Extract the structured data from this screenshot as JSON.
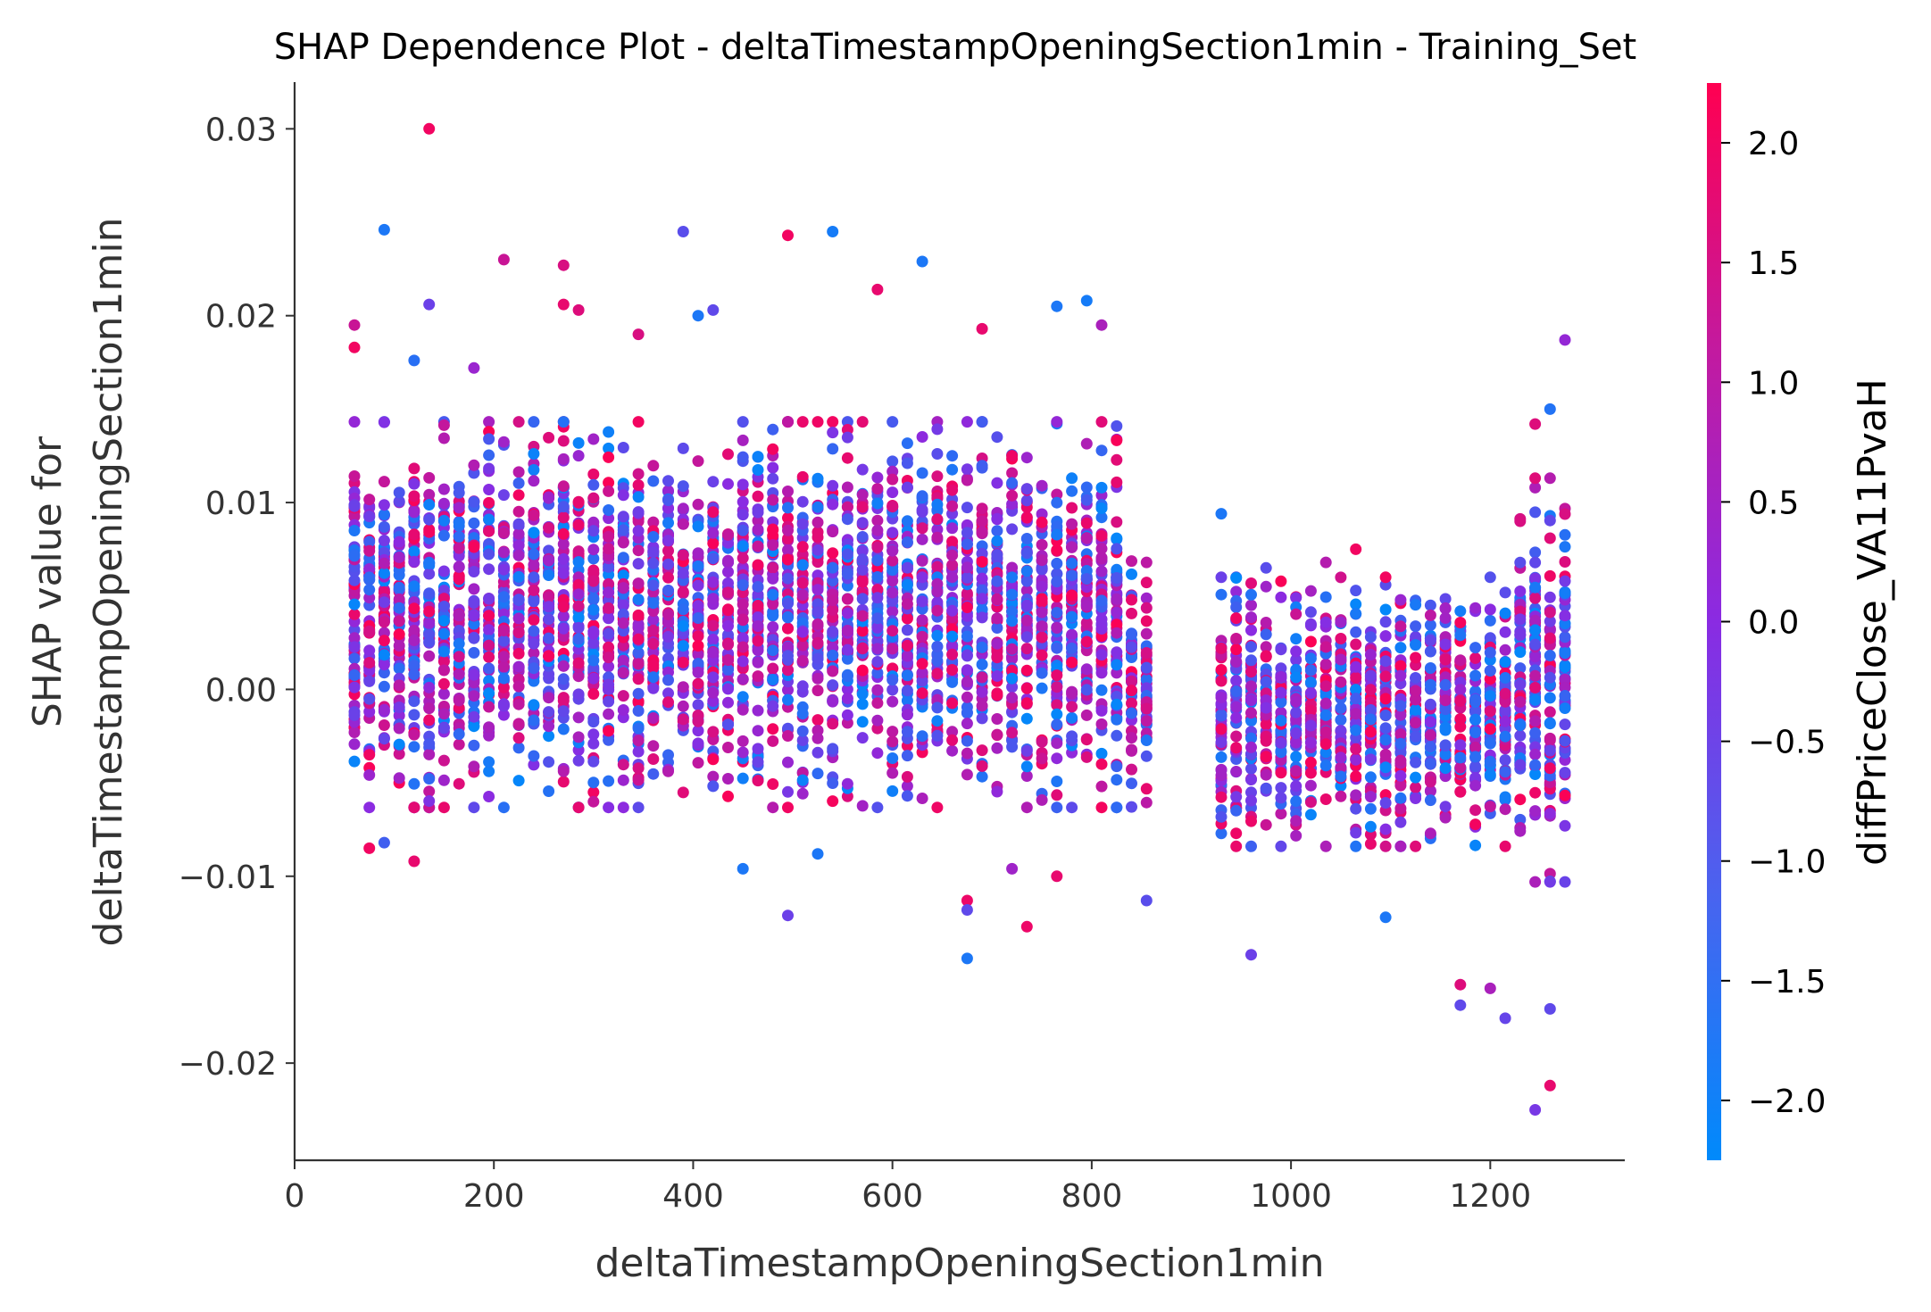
{
  "chart_data": {
    "type": "scatter",
    "title": "SHAP Dependence Plot - deltaTimestampOpeningSection1min - Training_Set",
    "xlabel": "deltaTimestampOpeningSection1min",
    "ylabel_line1": "SHAP value for",
    "ylabel_line2": "deltaTimestampOpeningSection1min",
    "xlim": [
      0,
      1335
    ],
    "ylim": [
      -0.0252,
      0.0325
    ],
    "x_ticks": [
      0,
      200,
      400,
      600,
      800,
      1000,
      1200
    ],
    "x_tick_labels": [
      "0",
      "200",
      "400",
      "600",
      "800",
      "1000",
      "1200"
    ],
    "y_ticks": [
      0.03,
      0.02,
      0.01,
      0.0,
      -0.01,
      -0.02
    ],
    "y_tick_labels": [
      "0.03",
      "0.02",
      "0.01",
      "0.00",
      "−0.01",
      "−0.02"
    ],
    "grid": false,
    "colorbar": {
      "label": "diffPriceClose_VA11PvaH",
      "range": [
        -2.25,
        2.25
      ],
      "ticks": [
        2.0,
        1.5,
        1.0,
        0.5,
        0.0,
        -0.5,
        -1.0,
        -1.5,
        -2.0
      ],
      "tick_labels": [
        "2.0",
        "1.5",
        "1.0",
        "0.5",
        "0.0",
        "−0.5",
        "−1.0",
        "−1.5",
        "−2.0"
      ],
      "color_low": "#008afb",
      "color_mid": "#8a2be2",
      "color_high": "#ff0051"
    },
    "points_note": "",
    "points": [
      {
        "x": 135,
        "y": 0.03,
        "c": 2.0
      },
      {
        "x": 90,
        "y": 0.0246,
        "c": -1.8
      },
      {
        "x": 390,
        "y": 0.0245,
        "c": -0.8
      },
      {
        "x": 495,
        "y": 0.0243,
        "c": 2.0
      },
      {
        "x": 540,
        "y": 0.0245,
        "c": -1.9
      },
      {
        "x": 630,
        "y": 0.0229,
        "c": -1.8
      },
      {
        "x": 210,
        "y": 0.023,
        "c": 1.2
      },
      {
        "x": 270,
        "y": 0.0227,
        "c": 1.5
      },
      {
        "x": 585,
        "y": 0.0214,
        "c": 1.8
      },
      {
        "x": 135,
        "y": 0.0206,
        "c": -0.5
      },
      {
        "x": 270,
        "y": 0.0206,
        "c": 1.8
      },
      {
        "x": 285,
        "y": 0.0203,
        "c": 1.6
      },
      {
        "x": 795,
        "y": 0.0208,
        "c": -1.9
      },
      {
        "x": 765,
        "y": 0.0205,
        "c": -1.8
      },
      {
        "x": 420,
        "y": 0.0203,
        "c": -0.7
      },
      {
        "x": 405,
        "y": 0.02,
        "c": -1.8
      },
      {
        "x": 60,
        "y": 0.0195,
        "c": 1.2
      },
      {
        "x": 810,
        "y": 0.0195,
        "c": 0.6
      },
      {
        "x": 690,
        "y": 0.0193,
        "c": 1.8
      },
      {
        "x": 345,
        "y": 0.019,
        "c": 1.5
      },
      {
        "x": 60,
        "y": 0.0183,
        "c": 2.0
      },
      {
        "x": 120,
        "y": 0.0176,
        "c": -1.6
      },
      {
        "x": 180,
        "y": 0.0172,
        "c": 0.3
      },
      {
        "x": 1275,
        "y": 0.0187,
        "c": 0.2
      },
      {
        "x": 1260,
        "y": 0.015,
        "c": -1.7
      },
      {
        "x": 1245,
        "y": 0.0142,
        "c": 1.6
      },
      {
        "x": 1230,
        "y": 0.009,
        "c": 1.5
      },
      {
        "x": 930,
        "y": 0.0094,
        "c": -1.8
      },
      {
        "x": 1065,
        "y": 0.0075,
        "c": 2.0
      },
      {
        "x": 975,
        "y": 0.0065,
        "c": -0.8
      },
      {
        "x": 1035,
        "y": 0.0068,
        "c": 0.8
      },
      {
        "x": 75,
        "y": -0.0085,
        "c": 2.0
      },
      {
        "x": 90,
        "y": -0.0082,
        "c": -1.2
      },
      {
        "x": 120,
        "y": -0.0092,
        "c": 1.8
      },
      {
        "x": 495,
        "y": -0.0121,
        "c": -0.5
      },
      {
        "x": 450,
        "y": -0.0096,
        "c": -1.8
      },
      {
        "x": 525,
        "y": -0.0088,
        "c": -1.8
      },
      {
        "x": 675,
        "y": -0.0113,
        "c": 1.9
      },
      {
        "x": 675,
        "y": -0.0118,
        "c": -0.7
      },
      {
        "x": 675,
        "y": -0.0144,
        "c": -1.8
      },
      {
        "x": 735,
        "y": -0.0127,
        "c": 1.9
      },
      {
        "x": 765,
        "y": -0.01,
        "c": 1.8
      },
      {
        "x": 720,
        "y": -0.0096,
        "c": 0.4
      },
      {
        "x": 855,
        "y": -0.0113,
        "c": -0.8
      },
      {
        "x": 960,
        "y": -0.0142,
        "c": -0.5
      },
      {
        "x": 1095,
        "y": -0.0122,
        "c": -1.8
      },
      {
        "x": 1170,
        "y": -0.0158,
        "c": 1.6
      },
      {
        "x": 1170,
        "y": -0.0169,
        "c": -0.7
      },
      {
        "x": 1200,
        "y": -0.016,
        "c": 0.6
      },
      {
        "x": 1215,
        "y": -0.0176,
        "c": -0.6
      },
      {
        "x": 1245,
        "y": -0.0225,
        "c": -0.3
      },
      {
        "x": 1260,
        "y": -0.0212,
        "c": 1.8
      },
      {
        "x": 1260,
        "y": -0.0171,
        "c": -0.7
      }
    ]
  }
}
